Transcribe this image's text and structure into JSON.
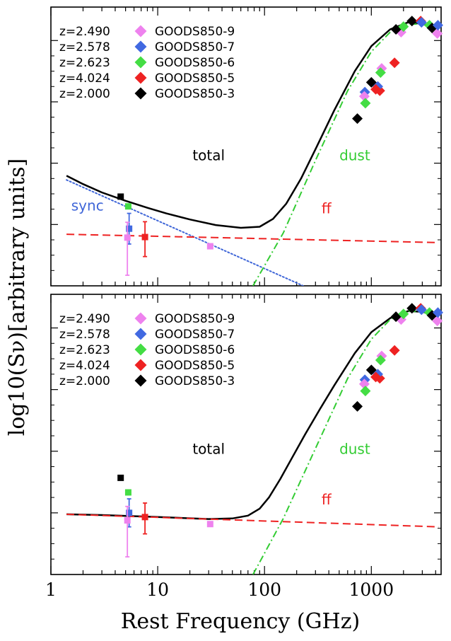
{
  "chart_data": {
    "type": "scatter",
    "ylabel": "log10(Sν)[arbitrary units]",
    "xlabel": "Rest Frequency (GHz)",
    "x_scale": "log",
    "xlim": [
      1,
      4500
    ],
    "x_ticks": [
      {
        "value": 1,
        "label": "1"
      },
      {
        "value": 10,
        "label": "10"
      },
      {
        "value": 100,
        "label": "100"
      },
      {
        "value": 1000,
        "label": "1000"
      }
    ],
    "legend": {
      "placement": "top-left",
      "entries": [
        {
          "z": "z=2.490",
          "name": "GOODS850-9",
          "color": "#ee82ee"
        },
        {
          "z": "z=2.578",
          "name": "GOODS850-7",
          "color": "#4169e1"
        },
        {
          "z": "z=2.623",
          "name": "GOODS850-6",
          "color": "#44dd44"
        },
        {
          "z": "z=4.024",
          "name": "GOODS850-5",
          "color": "#ee2222"
        },
        {
          "z": "z=2.000",
          "name": "GOODS850-3",
          "color": "#000000"
        }
      ]
    },
    "panels": [
      {
        "name": "top",
        "ylim": [
          0,
          10
        ],
        "y_ticks": [
          2.2,
          4.4,
          6.6,
          8.8
        ],
        "annotations": [
          {
            "text": "total",
            "color": "#000000",
            "x": 30,
            "y": 4.5
          },
          {
            "text": "dust",
            "color": "#33cc33",
            "x": 700,
            "y": 4.5
          },
          {
            "text": "sync",
            "color": "#3f66d8",
            "x": 2.2,
            "y": 2.7
          },
          {
            "text": "ff",
            "color": "#ee2222",
            "x": 380,
            "y": 2.6
          }
        ],
        "series": [
          {
            "name": "total",
            "color": "#000000",
            "style": "solid",
            "width": 2.5,
            "x": [
              1.4,
              2,
              3,
              5,
              8,
              12,
              20,
              35,
              60,
              90,
              120,
              160,
              220,
              300,
              450,
              700,
              1000,
              1500,
              2200,
              3000,
              4200
            ],
            "y": [
              3.95,
              3.65,
              3.35,
              3.05,
              2.8,
              2.6,
              2.38,
              2.18,
              2.08,
              2.12,
              2.4,
              2.95,
              3.85,
              4.9,
              6.3,
              7.7,
              8.6,
              9.2,
              9.45,
              9.4,
              9.25
            ]
          },
          {
            "name": "sync",
            "color": "#3f66d8",
            "style": "dotted",
            "width": 2,
            "x": [
              1.4,
              230
            ],
            "y": [
              3.8,
              0
            ]
          },
          {
            "name": "ff",
            "color": "#ee2222",
            "style": "dashed",
            "width": 2,
            "x": [
              1.4,
              4300
            ],
            "y": [
              1.85,
              1.55
            ]
          },
          {
            "name": "dust",
            "color": "#33cc33",
            "style": "dashdot",
            "width": 2,
            "x": [
              78,
              150,
              300,
              600,
              1000,
              1500,
              2200,
              3000,
              4200
            ],
            "y": [
              0,
              1.9,
              4.5,
              7.0,
              8.4,
              9.1,
              9.4,
              9.38,
              9.22
            ]
          }
        ],
        "radio_points": [
          {
            "color": "#000000",
            "x": 4.5,
            "y": 3.2,
            "err": [
              0,
              0
            ]
          },
          {
            "color": "#44dd44",
            "x": 5.3,
            "y": 2.85,
            "err": [
              0,
              0
            ]
          },
          {
            "color": "#4169e1",
            "x": 5.4,
            "y": 2.05,
            "err": [
              0.55,
              0.55
            ]
          },
          {
            "color": "#ee82ee",
            "x": 5.2,
            "y": 1.73,
            "err": [
              1.35,
              0.55
            ]
          },
          {
            "color": "#ee2222",
            "x": 7.6,
            "y": 1.75,
            "err": [
              0.7,
              0.55
            ]
          },
          {
            "color": "#ee82ee",
            "x": 31,
            "y": 1.42,
            "err": [
              0,
              0
            ]
          }
        ],
        "fir_points": [
          {
            "color": "#000000",
            "x": 2400,
            "y": 9.5
          },
          {
            "color": "#ee2222",
            "x": 2900,
            "y": 9.5
          },
          {
            "color": "#4169e1",
            "x": 2950,
            "y": 9.45
          },
          {
            "color": "#44dd44",
            "x": 3500,
            "y": 9.35
          },
          {
            "color": "#000000",
            "x": 3700,
            "y": 9.25
          },
          {
            "color": "#ee82ee",
            "x": 4150,
            "y": 9.05
          },
          {
            "color": "#4169e1",
            "x": 4200,
            "y": 9.35
          },
          {
            "color": "#ee82ee",
            "x": 1900,
            "y": 9.1
          },
          {
            "color": "#000000",
            "x": 1700,
            "y": 9.2
          },
          {
            "color": "#44dd44",
            "x": 2000,
            "y": 9.3
          },
          {
            "color": "#ee2222",
            "x": 1650,
            "y": 8.0
          },
          {
            "color": "#ee82ee",
            "x": 1250,
            "y": 7.8
          },
          {
            "color": "#44dd44",
            "x": 1220,
            "y": 7.65
          },
          {
            "color": "#000000",
            "x": 1000,
            "y": 7.3
          },
          {
            "color": "#ee2222",
            "x": 1200,
            "y": 7.0
          },
          {
            "color": "#4169e1",
            "x": 1150,
            "y": 7.15
          },
          {
            "color": "#ee2222",
            "x": 1100,
            "y": 7.05
          },
          {
            "color": "#4169e1",
            "x": 870,
            "y": 6.95
          },
          {
            "color": "#ee82ee",
            "x": 860,
            "y": 6.8
          },
          {
            "color": "#44dd44",
            "x": 880,
            "y": 6.55
          },
          {
            "color": "#000000",
            "x": 740,
            "y": 6.0
          }
        ]
      },
      {
        "name": "bottom",
        "ylim": [
          0,
          10
        ],
        "y_ticks": [
          2.2,
          4.4,
          6.6,
          8.8
        ],
        "annotations": [
          {
            "text": "total",
            "color": "#000000",
            "x": 30,
            "y": 4.3
          },
          {
            "text": "dust",
            "color": "#33cc33",
            "x": 700,
            "y": 4.3
          },
          {
            "text": "ff",
            "color": "#ee2222",
            "x": 380,
            "y": 2.5
          }
        ],
        "series": [
          {
            "name": "total",
            "color": "#000000",
            "style": "solid",
            "width": 2.5,
            "x": [
              1.4,
              3,
              10,
              30,
              50,
              70,
              90,
              110,
              140,
              180,
              240,
              330,
              450,
              700,
              1000,
              1500,
              2200,
              3000,
              4200
            ],
            "y": [
              2.15,
              2.12,
              2.05,
              1.98,
              2.0,
              2.1,
              2.35,
              2.75,
              3.4,
              4.15,
              5.0,
              5.9,
              6.75,
              7.9,
              8.65,
              9.15,
              9.4,
              9.38,
              9.2
            ]
          },
          {
            "name": "ff",
            "color": "#ee2222",
            "style": "dashed",
            "width": 2,
            "x": [
              1.4,
              4300
            ],
            "y": [
              2.15,
              1.7
            ]
          },
          {
            "name": "dust",
            "color": "#33cc33",
            "style": "dashdot",
            "width": 2,
            "x": [
              78,
              150,
              300,
              600,
              1000,
              1500,
              2200,
              3000,
              4200
            ],
            "y": [
              0,
              2.0,
              4.5,
              7.0,
              8.4,
              9.1,
              9.4,
              9.38,
              9.22
            ]
          }
        ],
        "radio_points": [
          {
            "color": "#000000",
            "x": 4.5,
            "y": 3.45,
            "err": [
              0,
              0
            ]
          },
          {
            "color": "#44dd44",
            "x": 5.3,
            "y": 2.93,
            "err": [
              0,
              0
            ]
          },
          {
            "color": "#4169e1",
            "x": 5.4,
            "y": 2.2,
            "err": [
              0.5,
              0.5
            ]
          },
          {
            "color": "#ee82ee",
            "x": 5.2,
            "y": 1.93,
            "err": [
              1.3,
              0.5
            ]
          },
          {
            "color": "#ee2222",
            "x": 7.6,
            "y": 2.05,
            "err": [
              0.6,
              0.5
            ]
          },
          {
            "color": "#ee82ee",
            "x": 31,
            "y": 1.8,
            "err": [
              0,
              0
            ]
          }
        ],
        "fir_points": [
          {
            "color": "#000000",
            "x": 2400,
            "y": 9.5
          },
          {
            "color": "#ee2222",
            "x": 2900,
            "y": 9.5
          },
          {
            "color": "#4169e1",
            "x": 2950,
            "y": 9.45
          },
          {
            "color": "#44dd44",
            "x": 3500,
            "y": 9.35
          },
          {
            "color": "#000000",
            "x": 3700,
            "y": 9.25
          },
          {
            "color": "#ee82ee",
            "x": 4150,
            "y": 9.05
          },
          {
            "color": "#4169e1",
            "x": 4200,
            "y": 9.35
          },
          {
            "color": "#ee82ee",
            "x": 1900,
            "y": 9.1
          },
          {
            "color": "#000000",
            "x": 1700,
            "y": 9.2
          },
          {
            "color": "#44dd44",
            "x": 2000,
            "y": 9.3
          },
          {
            "color": "#ee2222",
            "x": 1650,
            "y": 8.0
          },
          {
            "color": "#ee82ee",
            "x": 1250,
            "y": 7.8
          },
          {
            "color": "#44dd44",
            "x": 1220,
            "y": 7.65
          },
          {
            "color": "#000000",
            "x": 1000,
            "y": 7.3
          },
          {
            "color": "#ee2222",
            "x": 1200,
            "y": 7.0
          },
          {
            "color": "#4169e1",
            "x": 1150,
            "y": 7.15
          },
          {
            "color": "#ee2222",
            "x": 1100,
            "y": 7.05
          },
          {
            "color": "#4169e1",
            "x": 870,
            "y": 6.95
          },
          {
            "color": "#ee82ee",
            "x": 860,
            "y": 6.8
          },
          {
            "color": "#44dd44",
            "x": 880,
            "y": 6.55
          },
          {
            "color": "#000000",
            "x": 740,
            "y": 6.0
          }
        ]
      }
    ]
  }
}
